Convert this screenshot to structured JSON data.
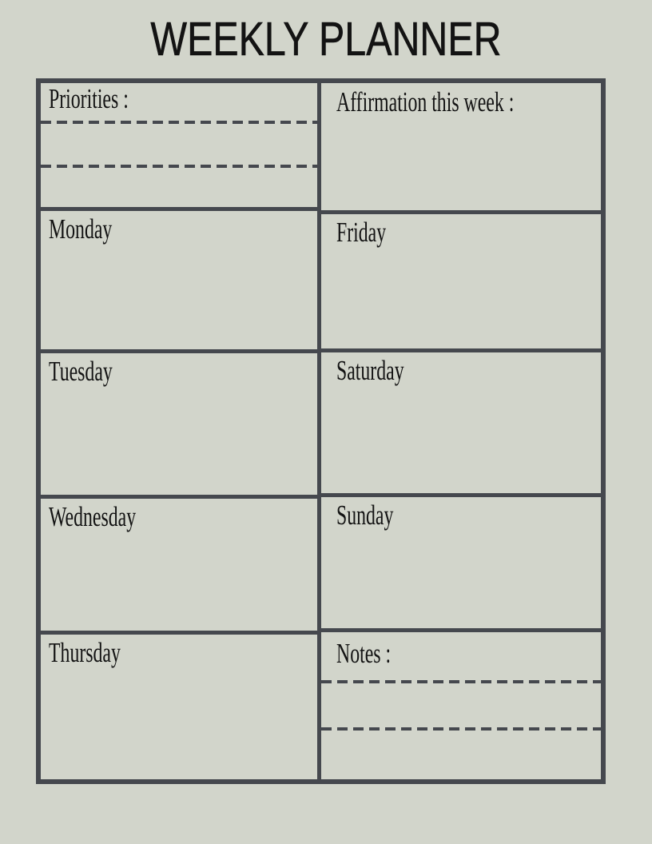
{
  "title": "WEEKLY PLANNER",
  "planner": {
    "left_column": {
      "priorities_label": "Priorities :",
      "days": [
        "Monday",
        "Tuesday",
        "Wednesday",
        "Thursday"
      ]
    },
    "right_column": {
      "affirmation_label": "Affirmation this week :",
      "days": [
        "Friday",
        "Saturday",
        "Sunday"
      ],
      "notes_label": "Notes :"
    }
  },
  "colors": {
    "page_background": "#d2d5cb",
    "grid_border": "#45484e",
    "text": "#131313",
    "dashed_line": "#45484e"
  }
}
